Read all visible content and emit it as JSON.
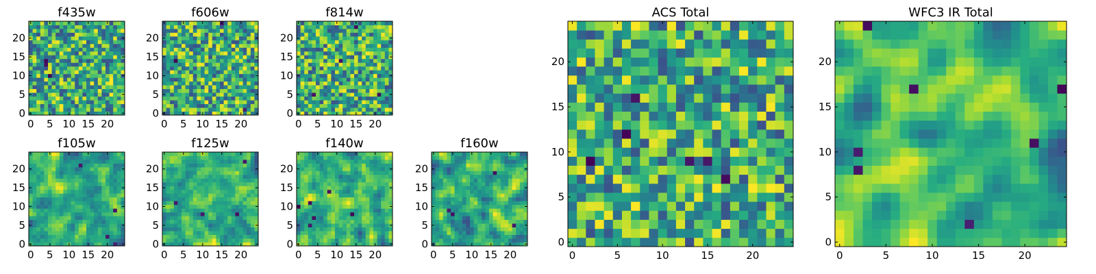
{
  "chart_data": [
    {
      "type": "heatmap",
      "title": "f435w",
      "grid_size": 25,
      "xticks": [
        "0",
        "5",
        "10",
        "15",
        "20"
      ],
      "yticks": [
        "0",
        "5",
        "10",
        "15",
        "20"
      ],
      "xlim": [
        -0.5,
        24.5
      ],
      "ylim": [
        -0.5,
        24.5
      ],
      "colormap": "viridis",
      "seed": 11,
      "smooth": 0,
      "spikes": 3
    },
    {
      "type": "heatmap",
      "title": "f606w",
      "grid_size": 25,
      "xticks": [
        "0",
        "5",
        "10",
        "15",
        "20"
      ],
      "yticks": [
        "0",
        "5",
        "10",
        "15",
        "20"
      ],
      "xlim": [
        -0.5,
        24.5
      ],
      "ylim": [
        -0.5,
        24.5
      ],
      "colormap": "viridis",
      "seed": 23,
      "smooth": 0,
      "spikes": 3
    },
    {
      "type": "heatmap",
      "title": "f814w",
      "grid_size": 25,
      "xticks": [
        "0",
        "5",
        "10",
        "15",
        "20"
      ],
      "yticks": [
        "0",
        "5",
        "10",
        "15",
        "20"
      ],
      "xlim": [
        -0.5,
        24.5
      ],
      "ylim": [
        -0.5,
        24.5
      ],
      "colormap": "viridis",
      "seed": 37,
      "smooth": 0,
      "spikes": 4
    },
    {
      "type": "heatmap",
      "title": "f105w",
      "grid_size": 25,
      "xticks": [
        "0",
        "5",
        "10",
        "15",
        "20"
      ],
      "yticks": [
        "0",
        "5",
        "10",
        "15",
        "20"
      ],
      "xlim": [
        -0.5,
        24.5
      ],
      "ylim": [
        -0.5,
        24.5
      ],
      "colormap": "viridis",
      "seed": 41,
      "smooth": 1,
      "spikes": 4
    },
    {
      "type": "heatmap",
      "title": "f125w",
      "grid_size": 25,
      "xticks": [
        "0",
        "5",
        "10",
        "15",
        "20"
      ],
      "yticks": [
        "0",
        "5",
        "10",
        "15",
        "20"
      ],
      "xlim": [
        -0.5,
        24.5
      ],
      "ylim": [
        -0.5,
        24.5
      ],
      "colormap": "viridis",
      "seed": 53,
      "smooth": 1,
      "spikes": 4
    },
    {
      "type": "heatmap",
      "title": "f140w",
      "grid_size": 25,
      "xticks": [
        "0",
        "5",
        "10",
        "15",
        "20"
      ],
      "yticks": [
        "0",
        "5",
        "10",
        "15",
        "20"
      ],
      "xlim": [
        -0.5,
        24.5
      ],
      "ylim": [
        -0.5,
        24.5
      ],
      "colormap": "viridis",
      "seed": 67,
      "smooth": 1,
      "spikes": 6
    },
    {
      "type": "heatmap",
      "title": "f160w",
      "grid_size": 25,
      "xticks": [
        "0",
        "5",
        "10",
        "15",
        "20"
      ],
      "yticks": [
        "0",
        "5",
        "10",
        "15",
        "20"
      ],
      "xlim": [
        -0.5,
        24.5
      ],
      "ylim": [
        -0.5,
        24.5
      ],
      "colormap": "viridis",
      "seed": 79,
      "smooth": 1,
      "spikes": 4
    },
    {
      "type": "heatmap",
      "title": "ACS Total",
      "grid_size": 25,
      "xticks": [
        "0",
        "5",
        "10",
        "15",
        "20"
      ],
      "yticks": [
        "0",
        "5",
        "10",
        "15",
        "20"
      ],
      "xlim": [
        -0.5,
        24.5
      ],
      "ylim": [
        -0.5,
        24.5
      ],
      "colormap": "viridis",
      "seed": 97,
      "smooth": 0,
      "spikes": 6
    },
    {
      "type": "heatmap",
      "title": "WFC3 IR Total",
      "grid_size": 25,
      "xticks": [
        "0",
        "5",
        "10",
        "15",
        "20"
      ],
      "yticks": [
        "0",
        "5",
        "10",
        "15",
        "20"
      ],
      "xlim": [
        -0.5,
        24.5
      ],
      "ylim": [
        -0.5,
        24.5
      ],
      "colormap": "viridis",
      "seed": 113,
      "smooth": 2,
      "spikes": 7
    }
  ]
}
